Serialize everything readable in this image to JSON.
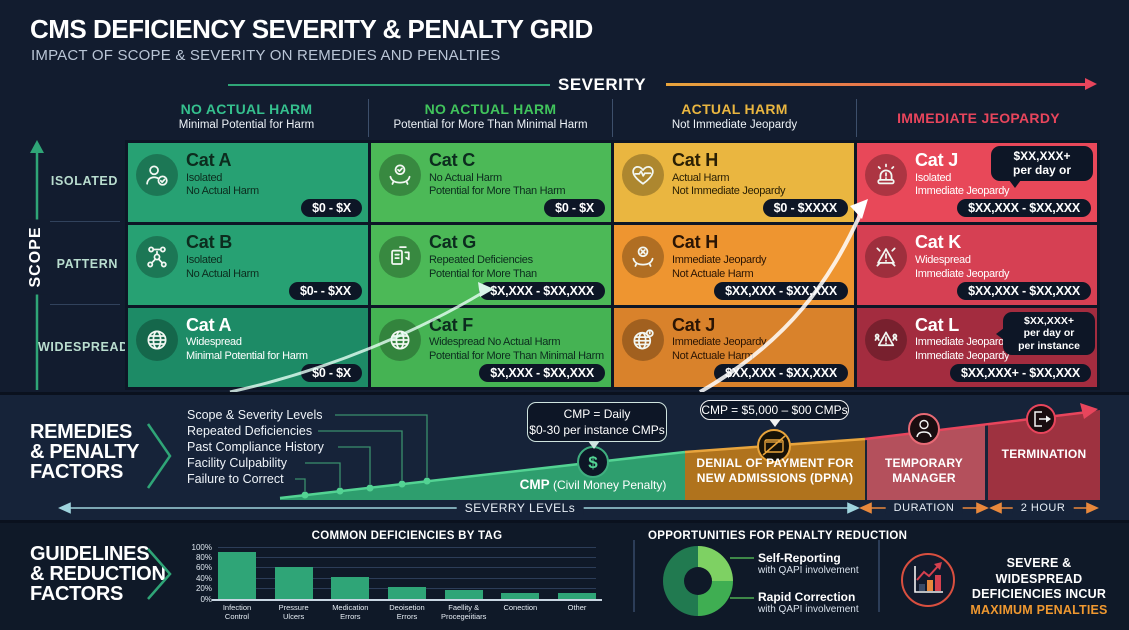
{
  "header": {
    "title": "CMS DEFICIENCY SEVERITY & PENALTY GRID",
    "subtitle": "IMPACT OF SCOPE & SEVERITY ON REMEDIES AND PENALTIES"
  },
  "axes": {
    "severity_label": "SEVERITY",
    "scope_label": "SCOPE",
    "scope_rows": [
      "ISOLATED",
      "PATTERN",
      "WIDESPREAD"
    ],
    "teal": "#2fa577",
    "red": "#e8455c"
  },
  "columns": [
    {
      "title": "NO ACTUAL HARM",
      "sub": "Minimal Potential for Harm",
      "color": "#35c08e"
    },
    {
      "title": "NO ACTUAL HARM",
      "sub": "Potential for More Than Minimal Harm",
      "color": "#41c45c"
    },
    {
      "title": "ACTUAL HARM",
      "sub": "Not Immediate Jeopardy",
      "color": "#eab640"
    },
    {
      "title": "IMMEDIATE JEOPARDY",
      "sub": "",
      "color": "#e8455c"
    }
  ],
  "grid": {
    "rows": [
      {
        "cells": [
          {
            "cat": "Cat A",
            "line1": "Isolated",
            "line2": "No Actual Harm",
            "badge": "$0 - $X",
            "icon": "user-check-icon",
            "bg": "#27a173",
            "fg": "#0c2c1e"
          },
          {
            "cat": "Cat C",
            "line1": "No Actual Harm",
            "line2": "Potential for More Than Harm",
            "badge": "$0 - $X",
            "icon": "hands-check-icon",
            "bg": "#4cb957",
            "fg": "#0c2c1e"
          },
          {
            "cat": "Cat H",
            "line1": "Actual Harm",
            "line2": "Not Immediate Jeopardy",
            "badge": "$0 - $XXXX",
            "icon": "heart-pulse-icon",
            "bg": "#eab640",
            "fg": "#2b2004"
          },
          {
            "cat": "Cat J",
            "line1": "Isolated",
            "line2": "Immediate Jeopardy",
            "badge": "$XX,XXX - $XX,XXX",
            "icon": "siren-icon",
            "bg": "#e84859",
            "fg": "#ffffff",
            "bubble": [
              "$XX,XXX+",
              "per day or"
            ]
          }
        ]
      },
      {
        "cells": [
          {
            "cat": "Cat B",
            "line1": "Isolated",
            "line2": "No Actual Harm",
            "badge": "$0- - $XX",
            "icon": "network-icon",
            "bg": "#27a173",
            "fg": "#0c2c1e"
          },
          {
            "cat": "Cat G",
            "line1": "Repeated Deficiencies",
            "line2": "Potential for More Than",
            "badge": "$X,XXX - $XX,XXX",
            "icon": "repeat-doc-icon",
            "bg": "#4cb957",
            "fg": "#0c2c1e"
          },
          {
            "cat": "Cat H",
            "line1": "Immediate Jeopardy",
            "line2": "Not Actuale Harm",
            "badge": "$XX,XXX - $XX,XXX",
            "icon": "hands-x-icon",
            "bg": "#ee9530",
            "fg": "#2b1504"
          },
          {
            "cat": "Cat K",
            "line1": "Widespread",
            "line2": "Immediate Jeopardy",
            "badge": "$XX,XXX - $XX,XXX",
            "icon": "warning-triangle-icon",
            "bg": "#d64053",
            "fg": "#ffffff"
          }
        ]
      },
      {
        "cells": [
          {
            "cat": "Cat A",
            "line1": "Widespread",
            "line2": "Minimal Potential for Harm",
            "badge": "$0 - $X",
            "icon": "globe-icon",
            "bg": "#1d8b66",
            "fg": "#ffffff"
          },
          {
            "cat": "Cat F",
            "line1": "Widespread No Actual Harm",
            "line2": "Potential for More Than Minimal Harm",
            "badge": "$X,XXX - $XX,XXX",
            "icon": "globe-icon",
            "bg": "#45b353",
            "fg": "#0c2c1e"
          },
          {
            "cat": "Cat J",
            "line1": "Immediate Jeopardy",
            "line2": "Not Actuale Harm",
            "badge": "$XX,XXX - $XX,XXX",
            "icon": "globe-alert-icon",
            "bg": "#d9822b",
            "fg": "#2b1504"
          },
          {
            "cat": "Cat L",
            "line1": "Immediate Jeopardy",
            "line2": "Immediate Jeopardy",
            "badge": "$XX,XXX+ - $XX,XXX",
            "icon": "warning-people-icon",
            "bg": "#a32c3f",
            "fg": "#ffffff",
            "bubble": [
              "$XX,XXX+",
              "per day or",
              "per instance"
            ]
          }
        ]
      }
    ]
  },
  "remedies": {
    "title_lines": [
      "REMEDIES",
      "& PENALTY",
      "FACTORS"
    ],
    "factors": [
      "Scope & Severity Levels",
      "Repeated Deficiencies",
      "Past Compliance History",
      "Facility Culpability",
      "Failure to Correct"
    ],
    "cmp_callout_lines": [
      "CMP = Daily",
      "$0-30 per instance CMPs"
    ],
    "cmp_label_bold": "CMP",
    "cmp_label_rest": " (Civil Money Penalty)",
    "dpna_callout": "CMP = $5,000 – $00 CMPs",
    "dpna_lines": [
      "DENIAL OF PAYMENT FOR",
      "NEW ADMISSIONS (DPNA)"
    ],
    "temp_manager_lines": [
      "TEMPORARY",
      "MANAGER"
    ],
    "termination": "TERMINATION",
    "axis_severity_levels": "SEVERRY LEVELs",
    "axis_duration": "DURATION",
    "axis_2hour": "2 HOUR"
  },
  "guidelines": {
    "title_lines": [
      "GUIDELINES",
      "& REDUCTION",
      "FACTORS"
    ],
    "bar_title": "COMMON DEFICIENCIES BY TAG",
    "donut_title": "OPPORTUNITIES FOR PENALTY REDUCTION",
    "legend": [
      {
        "label": "Self-Reporting",
        "sub": "with QAPI involvement"
      },
      {
        "label": "Rapid Correction",
        "sub": "with QAPI involvement"
      }
    ],
    "max_note_lines": [
      "SEVERE & WIDESPREAD",
      "DEFICIENCIES INCUR",
      "MAXIMUM PENALTIES"
    ],
    "max_note_color": "#ef9830"
  },
  "chart_data": [
    {
      "type": "bar",
      "title": "COMMON DEFICIENCIES BY TAG",
      "categories": [
        [
          "Infection",
          "Control"
        ],
        [
          "Pressure",
          "Ulcers"
        ],
        [
          "Medication",
          "Errors"
        ],
        [
          "Deoisetion",
          "Errors"
        ],
        [
          "Faellity &",
          "Procegeiitiars"
        ],
        [
          "Conection"
        ],
        [
          "Other"
        ]
      ],
      "values": [
        90,
        62,
        43,
        23,
        17,
        12,
        12
      ],
      "ylim": [
        0,
        100
      ],
      "yticks": [
        "0%",
        "20%",
        "40%",
        "60%",
        "80%",
        "100%"
      ],
      "grid": true,
      "bar_color": "#2fa577",
      "xlabel": "",
      "ylabel": ""
    },
    {
      "type": "pie",
      "donut": true,
      "title": "OPPORTUNITIES FOR PENALTY REDUCTION",
      "slices": [
        {
          "label": "Self-Reporting with QAPI involvement",
          "value": 25,
          "color": "#7ed163"
        },
        {
          "label": "Rapid Correction with QAPI involvement",
          "value": 25,
          "color": "#3fae52"
        },
        {
          "label": "",
          "value": 50,
          "color": "#217a50"
        }
      ],
      "legend_position": "right"
    }
  ]
}
